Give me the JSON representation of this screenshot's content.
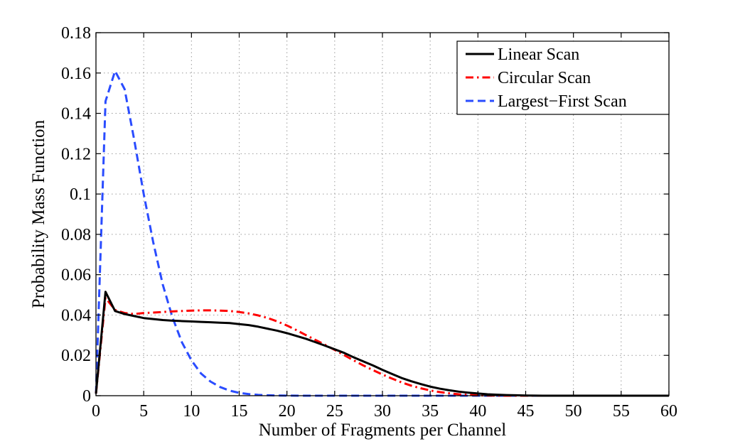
{
  "chart_data": {
    "type": "line",
    "title": "",
    "xlabel": "Number of Fragments per Channel",
    "ylabel": "Probability Mass Function",
    "xlim": [
      0,
      60
    ],
    "ylim": [
      0,
      0.18
    ],
    "grid": true,
    "legend_position": "top-right",
    "x_ticks": [
      0,
      5,
      10,
      15,
      20,
      25,
      30,
      35,
      40,
      45,
      50,
      55,
      60
    ],
    "x_tick_labels": [
      "0",
      "5",
      "10",
      "15",
      "20",
      "25",
      "30",
      "35",
      "40",
      "45",
      "50",
      "55",
      "60"
    ],
    "y_ticks": [
      0,
      0.02,
      0.04,
      0.06,
      0.08,
      0.1,
      0.12,
      0.14,
      0.16,
      0.18
    ],
    "y_tick_labels": [
      "0",
      "0.02",
      "0.04",
      "0.06",
      "0.08",
      "0.1",
      "0.12",
      "0.14",
      "0.16",
      "0.18"
    ],
    "series": [
      {
        "name": "Linear Scan",
        "color": "#000000",
        "style": "solid",
        "x": [
          0,
          1,
          2,
          3,
          4,
          5,
          6,
          7,
          8,
          9,
          10,
          11,
          12,
          13,
          14,
          15,
          16,
          17,
          18,
          19,
          20,
          21,
          22,
          23,
          24,
          25,
          26,
          27,
          28,
          29,
          30,
          31,
          32,
          33,
          34,
          35,
          36,
          37,
          38,
          39,
          40,
          41,
          42,
          43,
          44,
          45,
          46,
          47,
          48,
          49,
          50,
          55,
          60
        ],
        "values": [
          0.001,
          0.0515,
          0.042,
          0.0405,
          0.0395,
          0.0385,
          0.038,
          0.0375,
          0.0372,
          0.037,
          0.0368,
          0.0366,
          0.0364,
          0.0362,
          0.036,
          0.0355,
          0.035,
          0.0342,
          0.0332,
          0.0322,
          0.031,
          0.0296,
          0.0282,
          0.0265,
          0.0248,
          0.023,
          0.0212,
          0.019,
          0.017,
          0.015,
          0.0128,
          0.0108,
          0.0088,
          0.0072,
          0.0058,
          0.0045,
          0.0035,
          0.0027,
          0.002,
          0.0015,
          0.0011,
          0.0007,
          0.0005,
          0.0003,
          0.0002,
          0.0001,
          5e-05,
          0,
          0,
          0,
          0,
          0,
          0
        ]
      },
      {
        "name": "Circular Scan",
        "color": "#ff0000",
        "style": "dashdot",
        "x": [
          0,
          1,
          2,
          3,
          4,
          5,
          6,
          7,
          8,
          9,
          10,
          11,
          12,
          13,
          14,
          15,
          16,
          17,
          18,
          19,
          20,
          21,
          22,
          23,
          24,
          25,
          26,
          27,
          28,
          29,
          30,
          31,
          32,
          33,
          34,
          35,
          36,
          37,
          38,
          39,
          40,
          41,
          42,
          43,
          45,
          50,
          55,
          60
        ],
        "values": [
          0.001,
          0.0485,
          0.0425,
          0.041,
          0.0405,
          0.041,
          0.0412,
          0.0415,
          0.0418,
          0.042,
          0.0422,
          0.0423,
          0.0423,
          0.0422,
          0.042,
          0.0415,
          0.0408,
          0.0398,
          0.0385,
          0.0368,
          0.0348,
          0.0325,
          0.03,
          0.0276,
          0.0252,
          0.0227,
          0.0201,
          0.0175,
          0.015,
          0.0127,
          0.0105,
          0.0085,
          0.0066,
          0.005,
          0.0037,
          0.0026,
          0.0018,
          0.0012,
          0.0007,
          0.0004,
          0.0002,
          0.0001,
          5e-05,
          0,
          0,
          0,
          0,
          0
        ]
      },
      {
        "name": "Largest−First Scan",
        "color": "#2a4cff",
        "style": "dashed",
        "x": [
          0,
          1,
          2,
          3,
          4,
          5,
          6,
          7,
          8,
          9,
          10,
          11,
          12,
          13,
          14,
          15,
          16,
          17,
          18,
          19,
          20,
          22,
          25,
          30,
          40,
          50,
          60
        ],
        "values": [
          0.001,
          0.146,
          0.161,
          0.152,
          0.127,
          0.1,
          0.076,
          0.055,
          0.039,
          0.0265,
          0.0175,
          0.011,
          0.007,
          0.0043,
          0.0025,
          0.0014,
          0.0008,
          0.0004,
          0.0002,
          0.0001,
          5e-05,
          0,
          0,
          0,
          0,
          0,
          0
        ]
      }
    ]
  }
}
